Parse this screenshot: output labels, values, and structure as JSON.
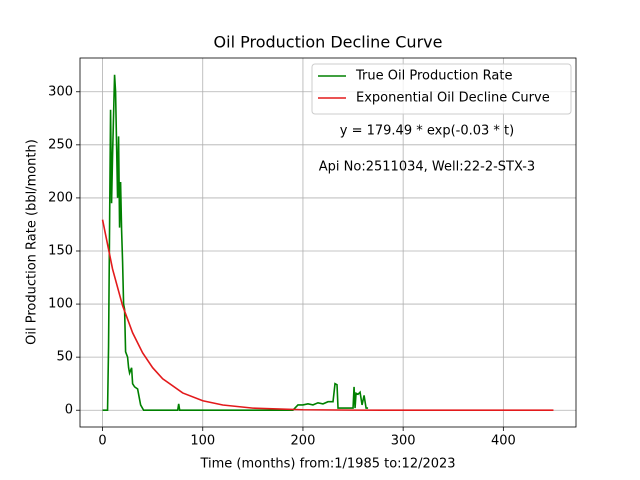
{
  "chart_data": {
    "type": "line",
    "title": "Oil Production Decline Curve",
    "xlabel": "Time (months) from:1/1985 to:12/2023",
    "ylabel": "Oil Production Rate (bbl/month)",
    "annotations": [
      "y = 179.49 * exp(-0.03 * t)",
      "Api No:2511034, Well:22-2-STX-3"
    ],
    "xlim": [
      -22.5,
      472.5
    ],
    "ylim": [
      -15.8,
      331.8
    ],
    "xticks": [
      0,
      100,
      200,
      300,
      400
    ],
    "yticks": [
      0,
      50,
      100,
      150,
      200,
      250,
      300
    ],
    "grid": true,
    "legend": "upper right",
    "series": [
      {
        "name": "True Oil Production Rate",
        "color": "#008000",
        "x": [
          0,
          5,
          6,
          8,
          9,
          10,
          12,
          13,
          14,
          15,
          16,
          17,
          18,
          19,
          20,
          21,
          22,
          23,
          25,
          26,
          27,
          29,
          30,
          32,
          35,
          38,
          41,
          75,
          76,
          77,
          190,
          195,
          200,
          205,
          210,
          215,
          220,
          225,
          230,
          232,
          234,
          235,
          250,
          251,
          252,
          253,
          255,
          257,
          259,
          261,
          263,
          265
        ],
        "values": [
          0,
          0,
          60,
          283,
          195,
          240,
          316,
          300,
          250,
          200,
          258,
          172,
          215,
          170,
          140,
          100,
          95,
          55,
          50,
          40,
          35,
          40,
          25,
          22,
          20,
          5,
          0,
          0,
          6,
          0,
          0,
          5,
          5,
          6,
          5,
          7,
          6,
          8,
          8,
          25,
          24,
          2,
          2,
          22,
          2,
          16,
          15,
          17,
          5,
          14,
          2,
          2
        ]
      },
      {
        "name": "Exponential Oil Decline Curve",
        "color": "#e31a1c",
        "x": [
          0,
          10,
          20,
          30,
          40,
          50,
          60,
          80,
          100,
          120,
          150,
          200,
          250,
          300,
          450
        ],
        "values": [
          179.49,
          132.97,
          98.51,
          72.98,
          54.07,
          40.05,
          29.67,
          16.28,
          8.94,
          4.91,
          1.99,
          0.45,
          0.1,
          0.02,
          0
        ]
      }
    ]
  }
}
